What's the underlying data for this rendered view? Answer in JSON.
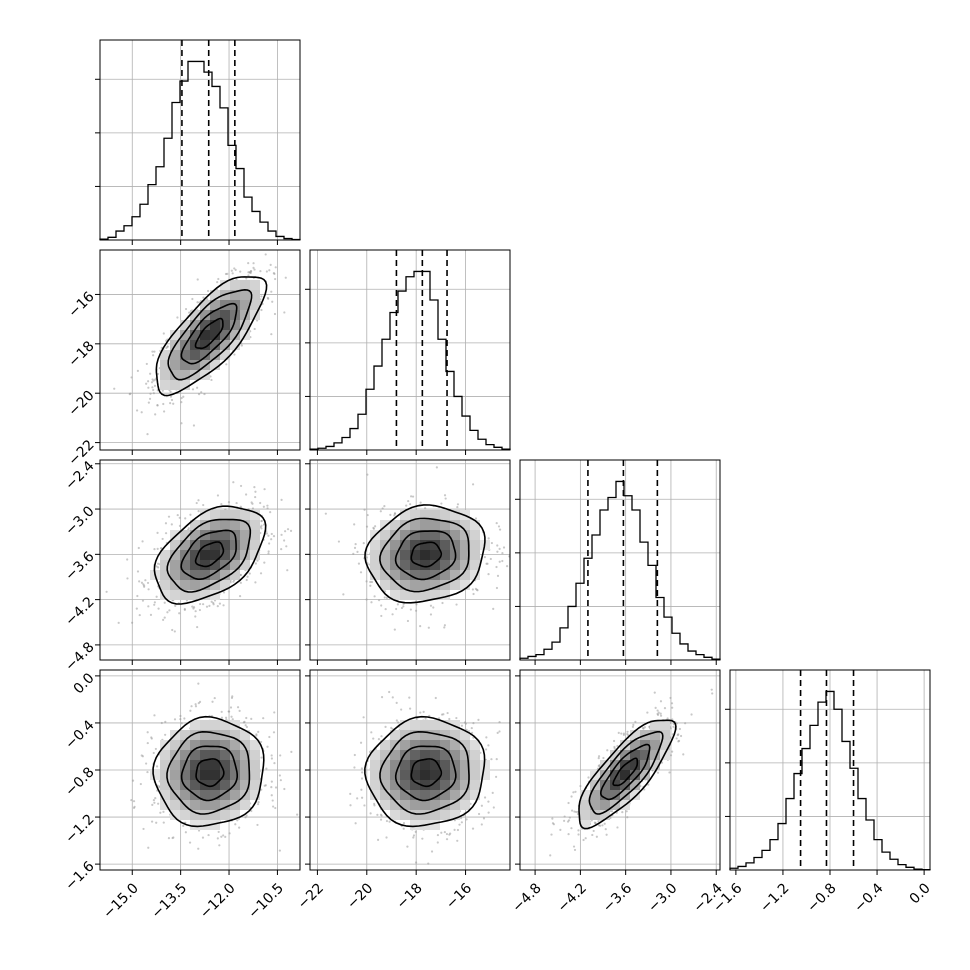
{
  "chart_data": {
    "type": "corner",
    "title": "",
    "n_params": 4,
    "grid": true,
    "colors": {
      "hist": "#000000",
      "points": "#9a9a9a",
      "grid": "#b0b0b0",
      "contour": "#000000",
      "quantile": "#000000"
    },
    "params": [
      {
        "label": "",
        "range": [
          -16.0,
          -9.8
        ],
        "ticks": [
          "-15.0",
          "-13.5",
          "-12.0",
          "-10.5"
        ],
        "mean": -12.6,
        "sd": 0.85,
        "quantiles": [
          -13.46,
          -12.63,
          -11.82
        ]
      },
      {
        "label": "",
        "range": [
          -22.3,
          -14.2
        ],
        "ticks": [
          "-22",
          "-20",
          "-18",
          "-16"
        ],
        "mean": -17.6,
        "sd": 1.2,
        "quantiles": [
          -18.8,
          -17.75,
          -16.75
        ]
      },
      {
        "label": "",
        "range": [
          -5.0,
          -2.35
        ],
        "ticks": [
          "-4.8",
          "-4.2",
          "-3.6",
          "-3.0",
          "-2.4"
        ],
        "mean": -3.6,
        "sd": 0.32,
        "quantiles": [
          -4.1,
          -3.63,
          -3.18
        ]
      },
      {
        "label": "",
        "range": [
          -1.65,
          0.05
        ],
        "ticks": [
          "-1.6",
          "-1.2",
          "-0.8",
          "-0.4",
          "0.0"
        ],
        "mean": -0.82,
        "sd": 0.23,
        "quantiles": [
          -1.05,
          -0.83,
          -0.6
        ]
      }
    ],
    "histograms": [
      {
        "param": 0,
        "ylim": [
          0,
          1.12
        ],
        "yticks": [
          0.3,
          0.6,
          0.9
        ],
        "density": [
          0.005,
          0.015,
          0.05,
          0.08,
          0.13,
          0.2,
          0.31,
          0.41,
          0.57,
          0.77,
          0.89,
          1.0,
          1.0,
          0.94,
          0.86,
          0.74,
          0.53,
          0.4,
          0.24,
          0.16,
          0.1,
          0.05,
          0.02,
          0.008,
          0.003
        ]
      },
      {
        "param": 1,
        "ylim": [
          0,
          1.12
        ],
        "yticks": [
          0.3,
          0.6,
          0.9
        ],
        "density": [
          0.005,
          0.01,
          0.02,
          0.04,
          0.07,
          0.12,
          0.2,
          0.34,
          0.47,
          0.62,
          0.77,
          0.89,
          0.97,
          1.0,
          1.0,
          0.84,
          0.62,
          0.44,
          0.3,
          0.19,
          0.11,
          0.06,
          0.03,
          0.015,
          0.005
        ]
      },
      {
        "param": 2,
        "ylim": [
          0,
          1.12
        ],
        "yticks": [
          0.3,
          0.6,
          0.9
        ],
        "density": [
          0.01,
          0.02,
          0.03,
          0.06,
          0.1,
          0.18,
          0.3,
          0.43,
          0.57,
          0.7,
          0.84,
          0.91,
          1.0,
          0.92,
          0.84,
          0.66,
          0.53,
          0.35,
          0.24,
          0.15,
          0.09,
          0.05,
          0.03,
          0.015,
          0.005
        ]
      },
      {
        "param": 3,
        "ylim": [
          0,
          1.12
        ],
        "yticks": [
          0.3,
          0.6,
          0.9
        ],
        "density": [
          0.01,
          0.02,
          0.04,
          0.07,
          0.11,
          0.17,
          0.26,
          0.4,
          0.54,
          0.68,
          0.81,
          0.94,
          1.0,
          0.9,
          0.72,
          0.57,
          0.4,
          0.28,
          0.17,
          0.1,
          0.06,
          0.03,
          0.015,
          0.005,
          0.002
        ]
      }
    ],
    "pairs": [
      {
        "x": 0,
        "y": 1,
        "correlation": 0.75
      },
      {
        "x": 0,
        "y": 2,
        "correlation": 0.45
      },
      {
        "x": 1,
        "y": 2,
        "correlation": 0.12
      },
      {
        "x": 0,
        "y": 3,
        "correlation": 0.05
      },
      {
        "x": 1,
        "y": 3,
        "correlation": 0.05
      },
      {
        "x": 2,
        "y": 3,
        "correlation": 0.8
      }
    ],
    "contour_levels_sigma": [
      0.5,
      1.0,
      1.5,
      2.0
    ]
  }
}
